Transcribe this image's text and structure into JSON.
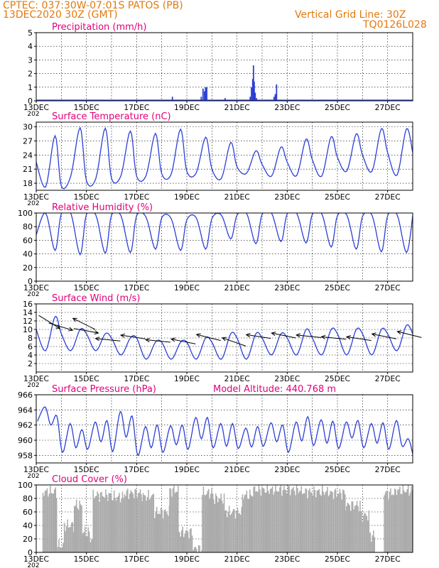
{
  "header": {
    "line1_left": "CPTEC:   037:30W-07:01S   PATOS (PB)",
    "line2_left": "13DEC2020 30Z (GMT)",
    "line1_right": "Vertical Grid Line: 30Z",
    "line2_right": "TQ0126L028"
  },
  "colors": {
    "header": "#e07a10",
    "panel_title": "#e0007a",
    "series": "#2b3fd6",
    "cloud_fill": "#aaaaaa",
    "wind_arrows": "#000000"
  },
  "x_ticks": [
    "13DEC",
    "15DEC",
    "17DEC",
    "19DEC",
    "21DEC",
    "23DEC",
    "25DEC",
    "27DEC"
  ],
  "x_tick_suffix": "202",
  "chart_data": [
    {
      "id": "precip",
      "type": "bar",
      "title": "Precipitation (mm/h)",
      "ylim": [
        0,
        5
      ],
      "yticks": [
        0,
        1,
        2,
        3,
        4,
        5
      ],
      "x_unit": "day offset from 13DEC 00Z",
      "x": [
        5.4,
        6.55,
        6.62,
        6.68,
        6.72,
        6.77,
        7.5,
        8.5,
        8.55,
        8.6,
        8.63,
        8.66,
        8.7,
        8.75,
        9.45,
        9.5,
        9.55,
        11.0,
        13.0
      ],
      "values": [
        0.3,
        0.3,
        0.9,
        0.7,
        1.0,
        1.0,
        0.2,
        0.3,
        1.0,
        1.6,
        2.6,
        1.4,
        0.6,
        0.2,
        0.3,
        0.5,
        1.2,
        0.05,
        0.05
      ]
    },
    {
      "id": "temp",
      "type": "line",
      "title": "Surface Temperature (nC)",
      "ylim": [
        16.5,
        31
      ],
      "yticks": [
        18,
        21,
        24,
        27,
        30
      ],
      "series": [
        {
          "diurnal": [
            [
              22.5,
              17.2,
              28.1
            ],
            [
              17.4,
              19.5,
              29.8
            ],
            [
              18.5,
              19.0,
              29.7
            ],
            [
              19.0,
              19.6,
              29.1
            ],
            [
              19.5,
              19.6,
              28.6
            ],
            [
              20.0,
              19.9,
              29.5
            ],
            [
              20.5,
              20.2,
              27.8
            ],
            [
              21.0,
              19.0,
              26.7
            ],
            [
              21.5,
              20.1,
              24.9
            ],
            [
              22.0,
              19.5,
              25.7
            ],
            [
              22.5,
              19.6,
              27.4
            ],
            [
              23.0,
              19.5,
              27.9
            ],
            [
              23.5,
              20.6,
              28.5
            ],
            [
              24.0,
              20.5,
              29.6
            ],
            [
              24.5,
              19.7,
              29.6
            ]
          ]
        }
      ]
    },
    {
      "id": "rh",
      "type": "line",
      "title": "Relative Humidity (%)",
      "ylim": [
        0,
        100
      ],
      "yticks": [
        0,
        20,
        40,
        60,
        80,
        100
      ],
      "series": [
        {
          "diurnal": [
            [
              68,
              100,
              45
            ],
            [
              99,
              100,
              39
            ],
            [
              98,
              97,
              41
            ],
            [
              97,
              96,
              42
            ],
            [
              96,
              94,
              47
            ],
            [
              93,
              92,
              45
            ],
            [
              90,
              93,
              47
            ],
            [
              92,
              97,
              62
            ],
            [
              97,
              100,
              55
            ],
            [
              98,
              100,
              58
            ],
            [
              99,
              100,
              56
            ],
            [
              98,
              99,
              50
            ],
            [
              96,
              97,
              47
            ],
            [
              95,
              97,
              43
            ],
            [
              96,
              98,
              42
            ]
          ]
        }
      ]
    },
    {
      "id": "wind",
      "type": "line",
      "title": "Surface Wind (m/s)",
      "ylim": [
        0,
        16
      ],
      "yticks": [
        2,
        4,
        6,
        8,
        10,
        12,
        14,
        16
      ],
      "series": [
        {
          "diurnal": [
            [
              10,
              5,
              13
            ],
            [
              9,
              5,
              10
            ],
            [
              9,
              5,
              9
            ],
            [
              8,
              4,
              8
            ],
            [
              8,
              3,
              7
            ],
            [
              7,
              3,
              7
            ],
            [
              7,
              3,
              8
            ],
            [
              7,
              3,
              9
            ],
            [
              8,
              3,
              9
            ],
            [
              8,
              4,
              9
            ],
            [
              8,
              4,
              10
            ],
            [
              8,
              4,
              10
            ],
            [
              9,
              4,
              10
            ],
            [
              9,
              4,
              10
            ],
            [
              9,
              5,
              11
            ]
          ]
        }
      ],
      "arrows": [
        {
          "day": 0.1,
          "speed": 13.3,
          "dx": 1.0,
          "dy": 0.62
        },
        {
          "day": 0.5,
          "speed": 11.5,
          "dx": 1.0,
          "dy": 0.3
        },
        {
          "day": 1.5,
          "speed": 10.2,
          "dx": 1.0,
          "dy": 0.18
        },
        {
          "day": 1.5,
          "speed": 10.0,
          "dx": -0.3,
          "dy": -0.15
        },
        {
          "day": 2.5,
          "speed": 7.3,
          "dx": -1.0,
          "dy": -0.1
        },
        {
          "day": 3.5,
          "speed": 7.8,
          "dx": -1.0,
          "dy": -0.15
        },
        {
          "day": 4.5,
          "speed": 7.0,
          "dx": -1.0,
          "dy": -0.1
        },
        {
          "day": 5.5,
          "speed": 6.6,
          "dx": -1.0,
          "dy": -0.2
        },
        {
          "day": 6.5,
          "speed": 7.4,
          "dx": -1.0,
          "dy": -0.25
        },
        {
          "day": 7.5,
          "speed": 6.1,
          "dx": -1.0,
          "dy": -0.35
        },
        {
          "day": 8.5,
          "speed": 7.9,
          "dx": -1.0,
          "dy": -0.15
        },
        {
          "day": 9.5,
          "speed": 8.0,
          "dx": -1.0,
          "dy": -0.2
        },
        {
          "day": 10.5,
          "speed": 8.1,
          "dx": -1.0,
          "dy": -0.1
        },
        {
          "day": 11.5,
          "speed": 7.7,
          "dx": -1.0,
          "dy": -0.1
        },
        {
          "day": 12.5,
          "speed": 7.4,
          "dx": -1.0,
          "dy": -0.15
        },
        {
          "day": 13.5,
          "speed": 7.8,
          "dx": -1.0,
          "dy": -0.2
        },
        {
          "day": 14.5,
          "speed": 8.1,
          "dx": -1.0,
          "dy": -0.25
        }
      ]
    },
    {
      "id": "pressure",
      "type": "line",
      "title": "Surface Pressure (hPa)",
      "annotation": "Model Altitude: 440.768  m",
      "ylim": [
        957,
        966
      ],
      "yticks": [
        958,
        960,
        962,
        964,
        966
      ],
      "series": [
        {
          "semidiurnal": [
            [
              962.5,
              964.4,
              962.0,
              963.2
            ],
            [
              958.4,
              962.2,
              959.0,
              961.4
            ],
            [
              958.8,
              962.4,
              959.8,
              962.6
            ],
            [
              958.5,
              963.8,
              960.4,
              963.2
            ],
            [
              958.0,
              961.8,
              959.0,
              962.0
            ],
            [
              958.4,
              961.9,
              959.4,
              962.0
            ],
            [
              958.8,
              963.0,
              960.2,
              963.0
            ],
            [
              959.0,
              962.2,
              959.2,
              962.2
            ],
            [
              958.9,
              961.6,
              959.1,
              961.8
            ],
            [
              959.2,
              962.3,
              959.8,
              962.0
            ],
            [
              958.4,
              962.4,
              959.9,
              963.1
            ],
            [
              959.3,
              962.7,
              959.6,
              962.5
            ],
            [
              958.9,
              962.4,
              960.3,
              962.6
            ],
            [
              959.0,
              962.2,
              959.6,
              962.3
            ],
            [
              958.8,
              962.6,
              959.2,
              960.2
            ]
          ]
        }
      ]
    },
    {
      "id": "cloud",
      "type": "bar",
      "title": "Cloud Cover (%)",
      "ylim": [
        0,
        100
      ],
      "yticks": [
        0,
        20,
        40,
        60,
        80,
        100
      ],
      "x_unit": "day offset from 13DEC 00Z",
      "levels": [
        [
          0.0,
          0.25,
          0
        ],
        [
          0.25,
          0.8,
          90
        ],
        [
          0.8,
          1.1,
          10
        ],
        [
          1.1,
          1.5,
          40
        ],
        [
          1.5,
          1.8,
          70
        ],
        [
          1.8,
          2.1,
          30
        ],
        [
          2.1,
          2.25,
          20
        ],
        [
          2.25,
          3.0,
          85
        ],
        [
          3.0,
          3.5,
          82
        ],
        [
          3.5,
          4.2,
          88
        ],
        [
          4.2,
          4.7,
          83
        ],
        [
          4.7,
          5.3,
          60
        ],
        [
          5.3,
          5.65,
          92
        ],
        [
          5.65,
          6.2,
          30
        ],
        [
          6.2,
          6.6,
          5
        ],
        [
          6.6,
          7.05,
          88
        ],
        [
          7.05,
          7.5,
          80
        ],
        [
          7.5,
          8.2,
          60
        ],
        [
          8.2,
          8.6,
          85
        ],
        [
          8.6,
          10.5,
          93
        ],
        [
          10.5,
          11.7,
          90
        ],
        [
          11.7,
          12.3,
          88
        ],
        [
          12.3,
          12.9,
          70
        ],
        [
          12.9,
          13.25,
          55
        ],
        [
          13.25,
          13.5,
          25
        ],
        [
          13.5,
          13.85,
          0
        ],
        [
          13.85,
          14.3,
          88
        ],
        [
          14.3,
          15.0,
          92
        ]
      ]
    }
  ]
}
